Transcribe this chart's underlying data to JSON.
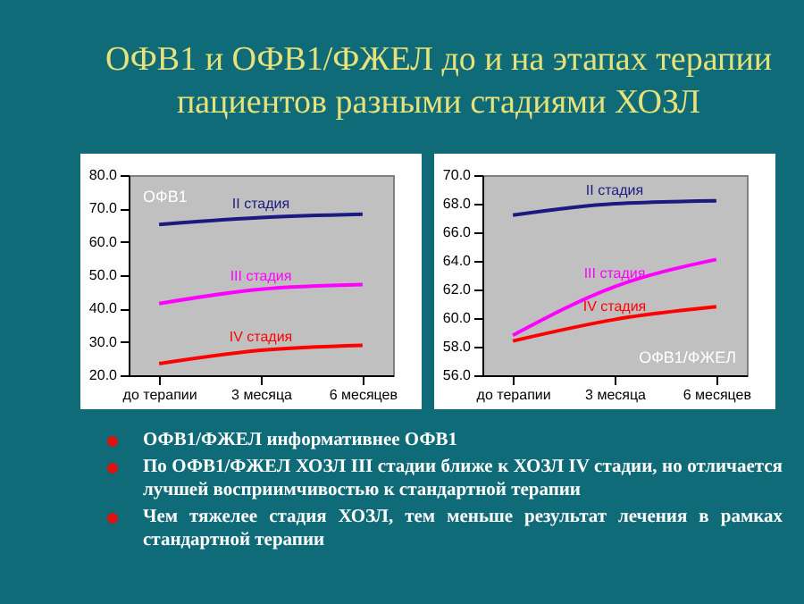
{
  "chart_data": [
    {
      "type": "other",
      "title": "ОФВ1 и ОФВ1/ФЖЕЛ до и на этапах терапии пациентов разными стадиями ХОЗЛ",
      "annotations": [
        "ОФВ1/ФЖЕЛ информативнее ОФВ1",
        "По ОФВ1/ФЖЕЛ ХОЗЛ III стадии ближе к ХОЗЛ IV стадии, но отличается лучшей восприимчивостью к стандартной терапии",
        "Чем тяжелее стадия ХОЗЛ, тем меньше результат лечения в рамках стандартной терапии"
      ]
    },
    {
      "type": "line",
      "title": "ОФВ1",
      "categories": [
        "до терапии",
        "3 месяца",
        "6 месяцев"
      ],
      "series": [
        {
          "name": "II стадия",
          "color": "#1a1a80",
          "values": [
            65.2,
            67.3,
            68.3
          ]
        },
        {
          "name": "III стадия",
          "color": "#ff00ff",
          "values": [
            41.5,
            45.8,
            47.2
          ]
        },
        {
          "name": "IV стадия",
          "color": "#ff0000",
          "values": [
            23.5,
            27.5,
            29.0
          ]
        }
      ],
      "ylim": [
        20,
        80
      ],
      "yticks": [
        {
          "value": 20,
          "label": "20.0"
        },
        {
          "value": 30,
          "label": "30.0"
        },
        {
          "value": 40,
          "label": "40.0"
        },
        {
          "value": 50,
          "label": "50.0"
        },
        {
          "value": 60,
          "label": "60.0"
        },
        {
          "value": 70,
          "label": "70.0"
        },
        {
          "value": 80,
          "label": "80.0"
        }
      ],
      "grid": false,
      "legend": false,
      "marker": "none",
      "line_style": "solid"
    },
    {
      "type": "line",
      "title": "ОФВ1/ФЖЕЛ",
      "categories": [
        "до терапии",
        "3 месяца",
        "6 месяцев"
      ],
      "series": [
        {
          "name": "II стадия",
          "color": "#1a1a80",
          "values": [
            67.2,
            68.0,
            68.2
          ]
        },
        {
          "name": "III стадия",
          "color": "#ff00ff",
          "values": [
            58.8,
            62.2,
            64.1
          ]
        },
        {
          "name": "IV стадия",
          "color": "#ff0000",
          "values": [
            58.4,
            59.9,
            60.8
          ]
        }
      ],
      "ylim": [
        56,
        70
      ],
      "yticks": [
        {
          "value": 56,
          "label": "56.0"
        },
        {
          "value": 58,
          "label": "58.0"
        },
        {
          "value": 60,
          "label": "60.0"
        },
        {
          "value": 62,
          "label": "62.0"
        },
        {
          "value": 64,
          "label": "64.0"
        },
        {
          "value": 66,
          "label": "66.0"
        },
        {
          "value": 68,
          "label": "68.0"
        },
        {
          "value": 70,
          "label": "70.0"
        }
      ],
      "grid": false,
      "legend": false,
      "marker": "none",
      "line_style": "solid"
    }
  ]
}
